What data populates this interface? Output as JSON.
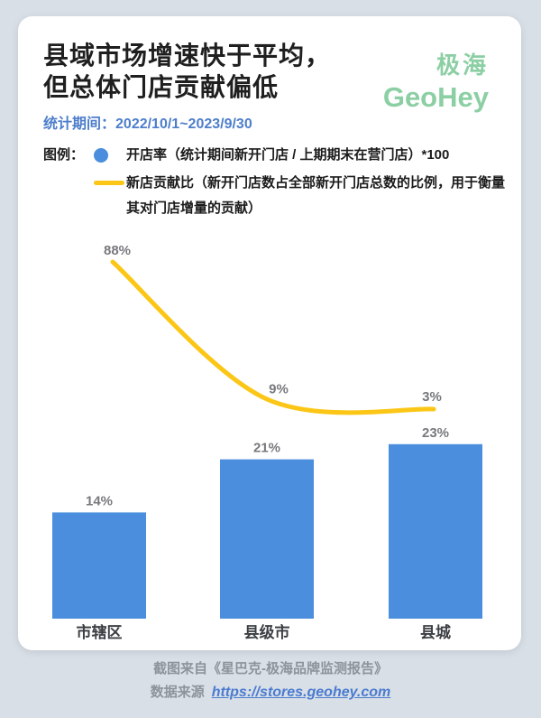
{
  "header": {
    "title_line1": "县域市场增速快于平均，",
    "title_line2": "但总体门店贡献偏低",
    "logo_cn": "极海",
    "logo_en": "GeoHey",
    "stat_period_label": "统计期间：",
    "stat_period_value": "2022/10/1~2023/9/30"
  },
  "legend": {
    "label": "图例：",
    "items": [
      {
        "marker": "dot",
        "color": "#4a8edd",
        "text": "开店率（统计期间新开门店 / 上期期末在营门店）*100"
      },
      {
        "marker": "line",
        "color": "#fbc616",
        "text": "新店贡献比（新开门店数占全部新开门店总数的比例，用于衡量其对门店增量的贡献）"
      }
    ]
  },
  "chart_data": {
    "type": "bar",
    "categories": [
      "市辖区",
      "县级市",
      "县城"
    ],
    "series": [
      {
        "name": "开店率",
        "type": "bar",
        "unit": "%",
        "color": "#4a8edd",
        "values": [
          14,
          21,
          23
        ]
      },
      {
        "name": "新店贡献比",
        "type": "line",
        "unit": "%",
        "color": "#fbc616",
        "values": [
          88,
          9,
          3
        ]
      }
    ],
    "value_suffix": "%",
    "grid": false,
    "legend_position": "top"
  },
  "footer": {
    "source_note": "截图来自《星巴克-极海品牌监测报告》",
    "data_source_label": "数据来源",
    "link_text": "https://stores.geohey.com",
    "link_href": "https://stores.geohey.com"
  },
  "colors": {
    "background": "#d9dfe6",
    "card": "#ffffff",
    "title": "#1f1f1f",
    "brand_green": "#8ccfa4",
    "accent_blue": "#4d7ecb",
    "bar_blue": "#4a8edd",
    "line_yellow": "#fbc616",
    "value_label_gray": "#77797d",
    "footer_gray": "#8d939b",
    "link_blue": "#4a7bd0"
  }
}
